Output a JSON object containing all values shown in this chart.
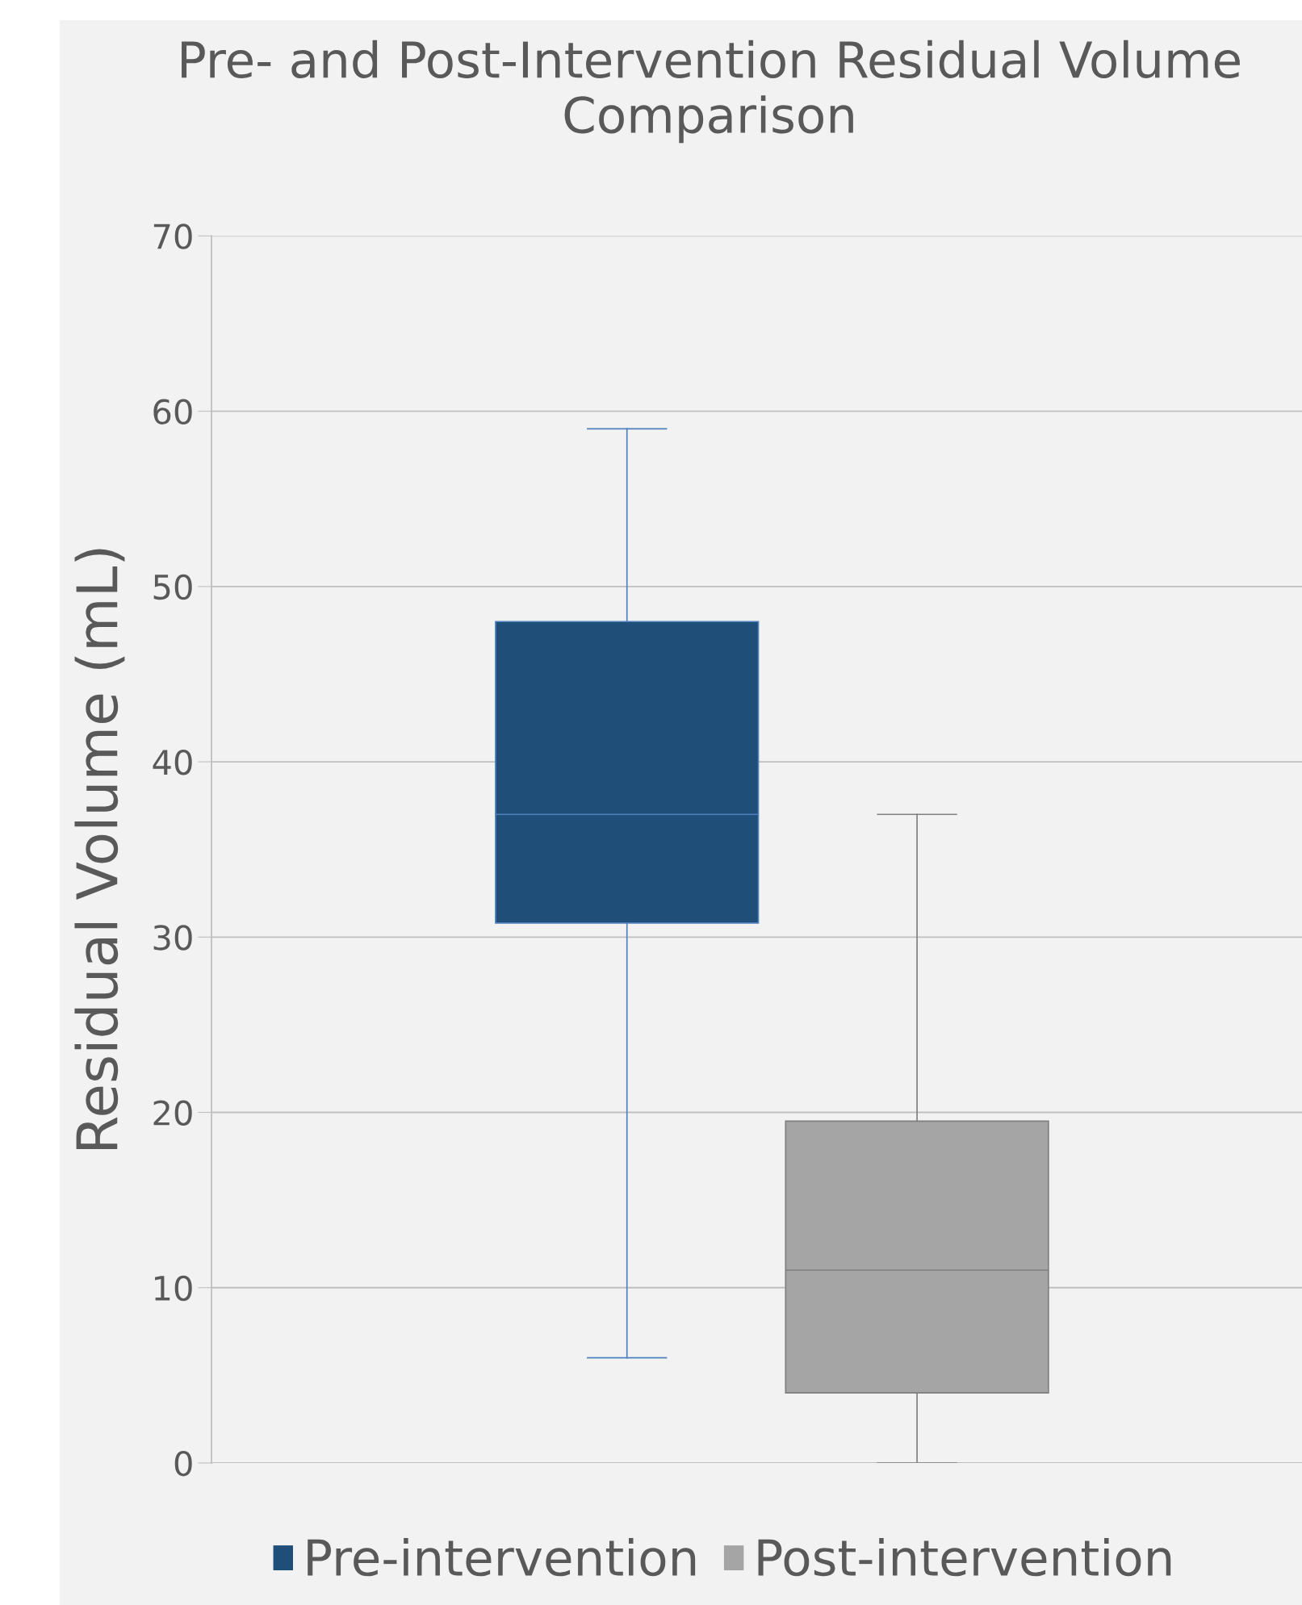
{
  "chart_data": {
    "type": "box",
    "title": "Pre- and Post-Intervention Residual Volume Comparison",
    "ylabel": "Residual Volume (mL)",
    "categories": [
      null
    ],
    "series": [
      {
        "name": "Pre-intervention",
        "color": "#1f4e79",
        "boxes": [
          {
            "low": 6,
            "q1": 30.8,
            "median": 37,
            "q3": 48,
            "high": 59
          }
        ]
      },
      {
        "name": "Post-intervention",
        "color": "#a5a5a5",
        "boxes": [
          {
            "low": 0,
            "q1": 4,
            "median": 11,
            "q3": 19.5,
            "high": 37
          }
        ]
      }
    ],
    "ylim": [
      0,
      70
    ],
    "yticks": [
      0,
      10,
      20,
      30,
      40,
      50,
      60,
      70
    ],
    "grid": "y",
    "legend": "bottom",
    "tick_labels": "y"
  }
}
